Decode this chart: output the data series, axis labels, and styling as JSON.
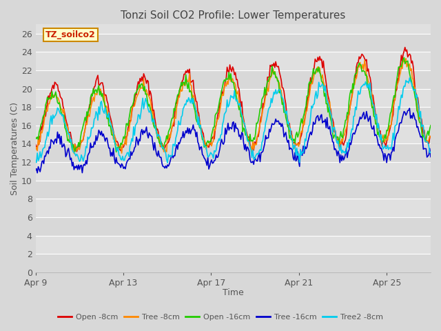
{
  "title": "Tonzi Soil CO2 Profile: Lower Temperatures",
  "xlabel": "Time",
  "ylabel": "Soil Temperatures (C)",
  "watermark": "TZ_soilco2",
  "ylim": [
    0,
    27
  ],
  "yticks": [
    0,
    2,
    4,
    6,
    8,
    10,
    12,
    14,
    16,
    18,
    20,
    22,
    24,
    26
  ],
  "xtick_labels": [
    "Apr 9",
    "Apr 13",
    "Apr 17",
    "Apr 21",
    "Apr 25"
  ],
  "xtick_positions": [
    0,
    4,
    8,
    12,
    16
  ],
  "xlim": [
    0,
    18
  ],
  "series_order": [
    "Open -8cm",
    "Tree -8cm",
    "Open -16cm",
    "Tree -16cm",
    "Tree2 -8cm"
  ],
  "series": {
    "Open -8cm": {
      "color": "#dd0000",
      "lw": 1.2
    },
    "Tree -8cm": {
      "color": "#ff8800",
      "lw": 1.2
    },
    "Open -16cm": {
      "color": "#22cc00",
      "lw": 1.2
    },
    "Tree -16cm": {
      "color": "#0000cc",
      "lw": 1.2
    },
    "Tree2 -8cm": {
      "color": "#00ccee",
      "lw": 1.2
    }
  },
  "fig_bg_color": "#d8d8d8",
  "plot_bg_color": "#e0e0e0",
  "band_colors": [
    "#d8d8d8",
    "#e0e0e0"
  ],
  "grid_color": "#ffffff",
  "title_color": "#444444",
  "label_color": "#555555",
  "watermark_color": "#cc2200",
  "watermark_bg": "#ffffcc",
  "watermark_edge": "#cc8800",
  "n_points": 432,
  "days": 18
}
